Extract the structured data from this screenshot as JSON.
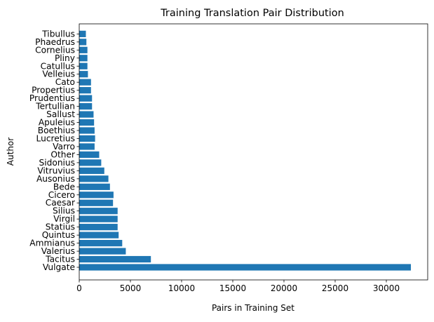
{
  "chart_data": {
    "type": "bar",
    "orientation": "horizontal",
    "title": "Training Translation Pair Distribution",
    "xlabel": "Pairs in Training Set",
    "ylabel": "Author",
    "xlim": [
      0,
      34000
    ],
    "xticks": [
      0,
      5000,
      10000,
      15000,
      20000,
      25000,
      30000
    ],
    "bar_color": "#1f77b4",
    "grid": false,
    "categories": [
      "Vulgate",
      "Tacitus",
      "Valerius",
      "Ammianus",
      "Quintus",
      "Statius",
      "Virgil",
      "Silius",
      "Caesar",
      "Cicero",
      "Bede",
      "Ausonius",
      "Vitruvius",
      "Sidonius",
      "Other",
      "Varro",
      "Lucretius",
      "Boethius",
      "Apuleius",
      "Sallust",
      "Tertullian",
      "Prudentius",
      "Propertius",
      "Cato",
      "Velleius",
      "Catullus",
      "Pliny",
      "Cornelius",
      "Phaedrus",
      "Tibullus"
    ],
    "values": [
      32400,
      7000,
      4550,
      4200,
      3850,
      3750,
      3750,
      3750,
      3300,
      3350,
      3000,
      2850,
      2450,
      2150,
      1950,
      1500,
      1550,
      1500,
      1450,
      1400,
      1250,
      1250,
      1150,
      1150,
      850,
      800,
      800,
      800,
      700,
      650
    ]
  }
}
